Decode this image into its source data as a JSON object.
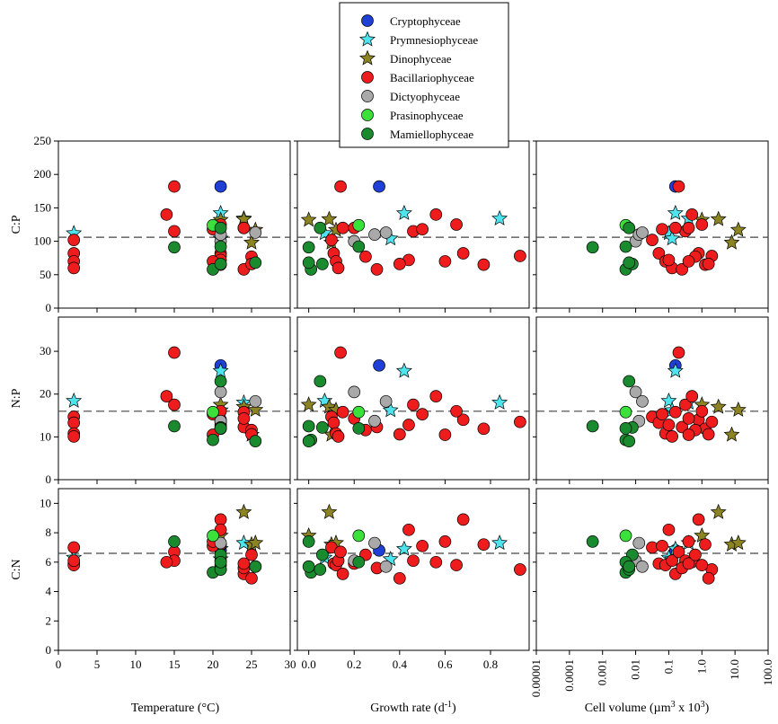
{
  "legend": [
    {
      "name": "Cryptophyceae",
      "color": "#1f3fd6",
      "shape": "circle"
    },
    {
      "name": "Prymnesiophyceae",
      "color": "#4fe3ee",
      "shape": "star"
    },
    {
      "name": "Dinophyceae",
      "color": "#8c8423",
      "shape": "star"
    },
    {
      "name": "Bacillariophyceae",
      "color": "#ee1c1c",
      "shape": "circle"
    },
    {
      "name": "Dictyophyceae",
      "color": "#a9a9a9",
      "shape": "circle"
    },
    {
      "name": "Prasinophyceae",
      "color": "#3be03b",
      "shape": "circle"
    },
    {
      "name": "Mamiellophyceae",
      "color": "#1a8a2e",
      "shape": "circle"
    }
  ],
  "chart_data": {
    "type": "scatter",
    "rows": [
      {
        "ylabel": "C:P",
        "ylim": [
          0,
          250
        ],
        "yticks": [
          "0",
          "50",
          "100",
          "150",
          "200",
          "250"
        ],
        "ref": 106
      },
      {
        "ylabel": "N:P",
        "ylim": [
          0,
          38
        ],
        "yticks": [
          "0",
          "10",
          "20",
          "30"
        ],
        "ref": 16
      },
      {
        "ylabel": "C:N",
        "ylim": [
          0,
          11
        ],
        "yticks": [
          "0",
          "2",
          "4",
          "6",
          "8",
          "10"
        ],
        "ref": 6.6
      }
    ],
    "columns": [
      {
        "xlabel": "Temperature (°C)",
        "xlim": [
          0,
          30
        ],
        "xticks": [
          "0",
          "5",
          "10",
          "15",
          "20",
          "25",
          "30"
        ],
        "scale": "linear"
      },
      {
        "xlabel": "Growth rate (d-1)",
        "xlim": [
          -0.05,
          0.97
        ],
        "xticks": [
          "0.0",
          "0.2",
          "0.4",
          "0.6",
          "0.8"
        ],
        "scale": "linear"
      },
      {
        "xlabel": "Cell volume (µm3 x 103)",
        "xlim": [
          -5,
          2
        ],
        "xticks": [
          "0.00001",
          "0.0001",
          "0.001",
          "0.01",
          "0.1",
          "1.0",
          "10.0",
          "100.0"
        ],
        "scale": "log10"
      }
    ],
    "series": [
      {
        "group": "Cryptophyceae",
        "temp": [
          21
        ],
        "growth": [
          0.31
        ],
        "logvol": [
          -0.8
        ],
        "cp": [
          182
        ],
        "np": [
          26.7
        ],
        "cn": [
          6.8
        ]
      },
      {
        "group": "Prymnesiophyceae",
        "temp": [
          2,
          21,
          21,
          24
        ],
        "growth": [
          0.07,
          0.36,
          0.42,
          0.84
        ],
        "logvol": [
          -1.0,
          -0.9,
          -0.8,
          -0.4
        ],
        "cp": [
          112,
          104,
          142,
          134
        ],
        "np": [
          18.4,
          16.2,
          25.4,
          18.0
        ],
        "cn": [
          6.3,
          6.2,
          6.9,
          7.3
        ]
      },
      {
        "group": "Dinophyceae",
        "temp": [
          21,
          24,
          25,
          25.5
        ],
        "growth": [
          0.0,
          0.09,
          0.1,
          0.12
        ],
        "logvol": [
          0.0,
          0.5,
          0.9,
          1.1
        ],
        "cp": [
          132,
          133,
          98,
          117
        ],
        "np": [
          17.5,
          17.0,
          10.5,
          16.3
        ],
        "cn": [
          7.8,
          9.4,
          7.2,
          7.3
        ]
      },
      {
        "group": "Bacillariophyceae",
        "temp": [
          2,
          2,
          2,
          2,
          15,
          15,
          14,
          21,
          21,
          21,
          21,
          24,
          24,
          24,
          25,
          25,
          20,
          20,
          21
        ],
        "growth": [
          0.1,
          0.11,
          0.12,
          0.13,
          0.14,
          0.46,
          0.56,
          0.68,
          0.77,
          0.93,
          0.44,
          0.15,
          0.3,
          0.2,
          0.25,
          0.4,
          0.5,
          0.6,
          0.65
        ],
        "logvol": [
          -1.5,
          -1.3,
          -1.1,
          -0.9,
          -0.7,
          -0.5,
          -0.3,
          -0.1,
          0.1,
          0.3,
          -1.0,
          -0.8,
          -0.6,
          -0.4,
          -0.2,
          0.2,
          -1.2,
          -0.4,
          0.0
        ],
        "cp": [
          102,
          82,
          70,
          60,
          182,
          115,
          140,
          82,
          65,
          78,
          72,
          120,
          58,
          120,
          77,
          66,
          118,
          70,
          125
        ],
        "np": [
          14.7,
          13.3,
          10.8,
          10.1,
          29.7,
          17.5,
          19.5,
          14.0,
          11.9,
          13.5,
          12.8,
          15.8,
          12.3,
          14.3,
          11.6,
          10.6,
          15.3,
          10.5,
          16.0
        ],
        "cn": [
          7.0,
          5.9,
          5.8,
          6.1,
          6.7,
          6.1,
          6.0,
          8.9,
          7.2,
          5.5,
          8.2,
          5.2,
          5.6,
          5.9,
          6.5,
          4.9,
          7.1,
          7.4,
          5.8
        ]
      },
      {
        "group": "Dictyophyceae",
        "temp": [
          21,
          21,
          25.5
        ],
        "growth": [
          0.2,
          0.29,
          0.34
        ],
        "logvol": [
          -2.0,
          -1.9,
          -1.8
        ],
        "cp": [
          100,
          110,
          113
        ],
        "np": [
          20.5,
          13.7,
          18.3
        ],
        "cn": [
          6.1,
          7.3,
          5.7
        ]
      },
      {
        "group": "Prasinophyceae",
        "temp": [
          20
        ],
        "growth": [
          0.22
        ],
        "logvol": [
          -2.3
        ],
        "cp": [
          124
        ],
        "np": [
          15.8
        ],
        "cn": [
          7.8
        ]
      },
      {
        "group": "Mamiellophyceae",
        "temp": [
          15,
          20,
          21,
          21,
          21,
          25.5
        ],
        "growth": [
          0.0,
          0.01,
          0.05,
          0.06,
          0.22,
          0.0
        ],
        "logvol": [
          -3.3,
          -2.3,
          -2.2,
          -2.1,
          -2.3,
          -2.2
        ],
        "cp": [
          91,
          58,
          120,
          66,
          92,
          68
        ],
        "np": [
          12.5,
          9.3,
          23.0,
          12.2,
          12.0,
          9.0
        ],
        "cn": [
          7.4,
          5.3,
          5.5,
          6.5,
          6.0,
          5.7
        ]
      }
    ]
  }
}
